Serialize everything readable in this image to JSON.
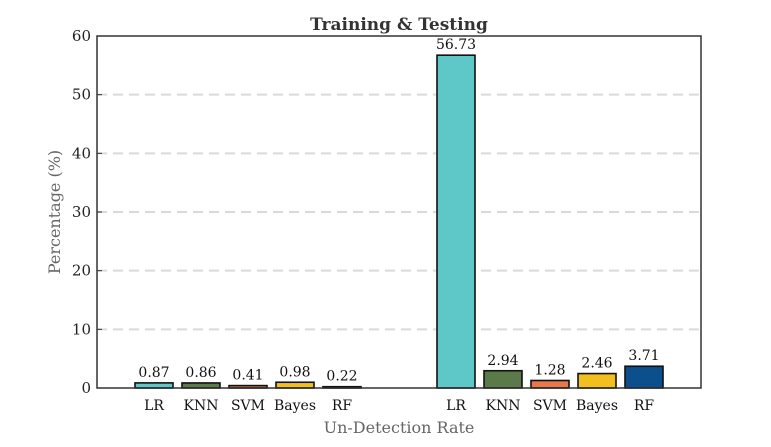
{
  "chart_data": {
    "type": "bar",
    "title": "Training & Testing",
    "xlabel": "Un-Detection Rate",
    "ylabel": "Percentage (%)",
    "ylim": [
      0,
      60
    ],
    "yticks": [
      "0",
      "10",
      "20",
      "30",
      "40",
      "50",
      "60"
    ],
    "grid": "horizontal dashed",
    "groups": [
      {
        "categories": [
          "LR",
          "KNN",
          "SVM",
          "Bayes",
          "RF"
        ],
        "values": [
          0.87,
          0.86,
          0.41,
          0.98,
          0.22
        ],
        "labels": [
          "0.87",
          "0.86",
          "0.41",
          "0.98",
          "0.22"
        ]
      },
      {
        "categories": [
          "LR",
          "KNN",
          "SVM",
          "Bayes",
          "RF"
        ],
        "values": [
          56.73,
          2.94,
          1.28,
          2.46,
          3.71
        ],
        "labels": [
          "56.73",
          "2.94",
          "1.28",
          "2.46",
          "3.71"
        ]
      }
    ],
    "colors": [
      "#5ec8c9",
      "#5a7a49",
      "#e8784a",
      "#f2c01e",
      "#0b4f8c"
    ]
  }
}
